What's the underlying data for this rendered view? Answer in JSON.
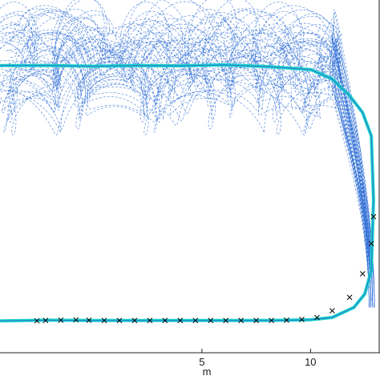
{
  "chart_data": {
    "type": "line",
    "title": "",
    "xlabel": "m",
    "ylabel": "",
    "xlim": [
      -4.3,
      13.2
    ],
    "ylim": [
      -1.05,
      9.45
    ],
    "x_ticks": [
      5,
      10
    ],
    "x_tick_labels": [
      "5",
      "10"
    ],
    "grid": false,
    "legend": "none",
    "colors": {
      "particles": "#2f6fd6",
      "estimate": "#19d6c8",
      "reference": "#000000",
      "axis": "#222222"
    },
    "series": [
      {
        "style": "thin blue dashed particle trajectories",
        "x": [
          -4.3,
          -3.0,
          -1.5,
          0.0,
          1.5,
          3.0,
          4.5,
          6.0,
          7.5,
          9.0,
          10.2,
          11.2,
          11.8,
          12.3,
          12.6,
          12.8
        ],
        "y": [
          8.0,
          8.7,
          7.6,
          8.3,
          7.0,
          8.2,
          7.4,
          8.9,
          7.6,
          8.1,
          6.8,
          8.3,
          6.6,
          5.0,
          2.5,
          0.5
        ]
      },
      {
        "style": "cyan thick estimated path",
        "x": [
          -4.3,
          -2.0,
          0.0,
          2.0,
          4.0,
          6.0,
          8.0,
          10.0,
          11.0,
          11.8,
          12.4,
          12.8,
          12.9,
          12.8,
          12.5,
          12.0,
          11.0,
          10.0,
          8.0,
          6.0,
          4.0,
          2.0,
          0.0,
          -2.0,
          -4.3
        ],
        "y": [
          7.5,
          7.5,
          7.48,
          7.5,
          7.49,
          7.52,
          7.47,
          7.38,
          7.1,
          6.6,
          6.1,
          5.4,
          3.5,
          1.4,
          0.7,
          0.3,
          0.0,
          -0.07,
          -0.09,
          -0.09,
          -0.09,
          -0.09,
          -0.09,
          -0.08,
          -0.1
        ]
      },
      {
        "style": "black x reference markers",
        "x": [
          -2.6,
          -2.2,
          -1.5,
          -0.8,
          -0.2,
          0.5,
          1.2,
          1.9,
          2.6,
          3.3,
          4.0,
          4.7,
          5.4,
          6.1,
          6.8,
          7.5,
          8.2,
          8.9,
          9.6,
          10.3,
          11.0,
          11.8,
          12.4,
          12.8,
          12.9
        ],
        "y": [
          -0.1,
          -0.09,
          -0.08,
          -0.07,
          -0.08,
          -0.09,
          -0.09,
          -0.09,
          -0.09,
          -0.09,
          -0.09,
          -0.09,
          -0.09,
          -0.09,
          -0.09,
          -0.09,
          -0.09,
          -0.08,
          -0.06,
          0.0,
          0.2,
          0.6,
          1.3,
          2.2,
          3.0
        ]
      }
    ]
  }
}
